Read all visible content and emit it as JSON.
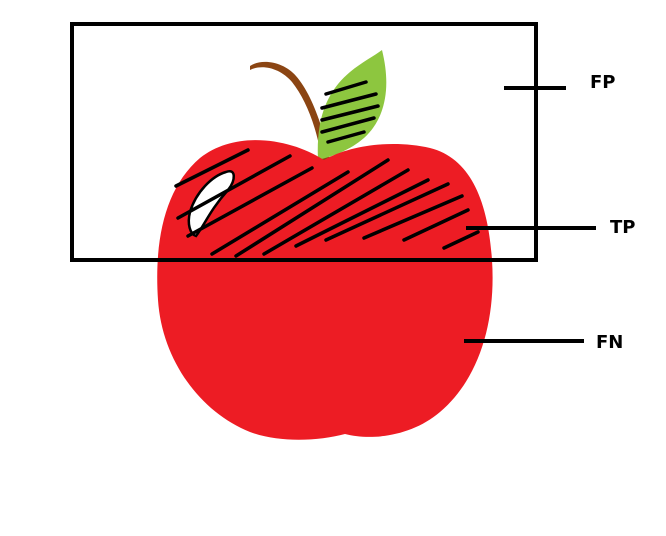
{
  "diagram": {
    "description_labels": {
      "fp": "FP",
      "tp": "TP",
      "fn": "FN"
    },
    "colors": {
      "apple": "#ed1c24",
      "leaf": "#8dc63f",
      "stem": "#8b4513",
      "outline": "#000000",
      "highlight": "#ffffff"
    }
  }
}
